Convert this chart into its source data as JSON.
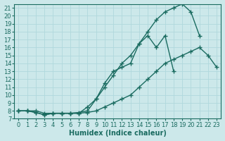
{
  "xlabel": "Humidex (Indice chaleur)",
  "background_color": "#cce8ea",
  "line_color": "#1a6b60",
  "grid_color": "#b0d8dc",
  "xlim": [
    -0.5,
    23.5
  ],
  "ylim": [
    7,
    21.5
  ],
  "xticks": [
    0,
    1,
    2,
    3,
    4,
    5,
    6,
    7,
    8,
    9,
    10,
    11,
    12,
    13,
    14,
    15,
    16,
    17,
    18,
    19,
    20,
    21,
    22,
    23
  ],
  "yticks": [
    7,
    8,
    9,
    10,
    11,
    12,
    13,
    14,
    15,
    16,
    17,
    18,
    19,
    20,
    21
  ],
  "line_upper_x": [
    0,
    1,
    2,
    3,
    4,
    5,
    6,
    7,
    8,
    9,
    10,
    11,
    12,
    13,
    14,
    15,
    16,
    17,
    18,
    19,
    20,
    21,
    22,
    23
  ],
  "line_upper_y": [
    8.0,
    8.0,
    7.8,
    7.5,
    7.7,
    7.7,
    7.7,
    7.7,
    8.5,
    9.5,
    11.0,
    12.5,
    14.0,
    15.0,
    16.5,
    18.0,
    19.5,
    20.5,
    21.0,
    21.5,
    20.5,
    17.5,
    null,
    null
  ],
  "line_mid_x": [
    0,
    1,
    2,
    3,
    4,
    5,
    6,
    7,
    8,
    9,
    10,
    11,
    12,
    13,
    14,
    15,
    16,
    17,
    18,
    19,
    20,
    21,
    22,
    23
  ],
  "line_mid_y": [
    8.0,
    8.0,
    7.8,
    7.5,
    7.7,
    7.7,
    7.7,
    7.8,
    8.0,
    9.5,
    11.5,
    13.0,
    13.5,
    14.0,
    16.5,
    17.5,
    16.0,
    17.5,
    13.0,
    null,
    null,
    null,
    null,
    null
  ],
  "line_lower_x": [
    0,
    1,
    2,
    3,
    4,
    5,
    6,
    7,
    8,
    9,
    10,
    11,
    12,
    13,
    14,
    15,
    16,
    17,
    18,
    19,
    20,
    21,
    22,
    23
  ],
  "line_lower_y": [
    8.0,
    8.0,
    8.0,
    7.7,
    7.7,
    7.7,
    7.7,
    7.7,
    7.8,
    8.0,
    8.5,
    9.0,
    9.5,
    10.0,
    11.0,
    12.0,
    13.0,
    14.0,
    14.5,
    15.0,
    15.5,
    16.0,
    15.0,
    13.5
  ],
  "font_color": "#1a6b60",
  "marker": "+",
  "marker_size": 4,
  "xlabel_fontsize": 7,
  "tick_fontsize": 6,
  "linewidth": 1.0
}
